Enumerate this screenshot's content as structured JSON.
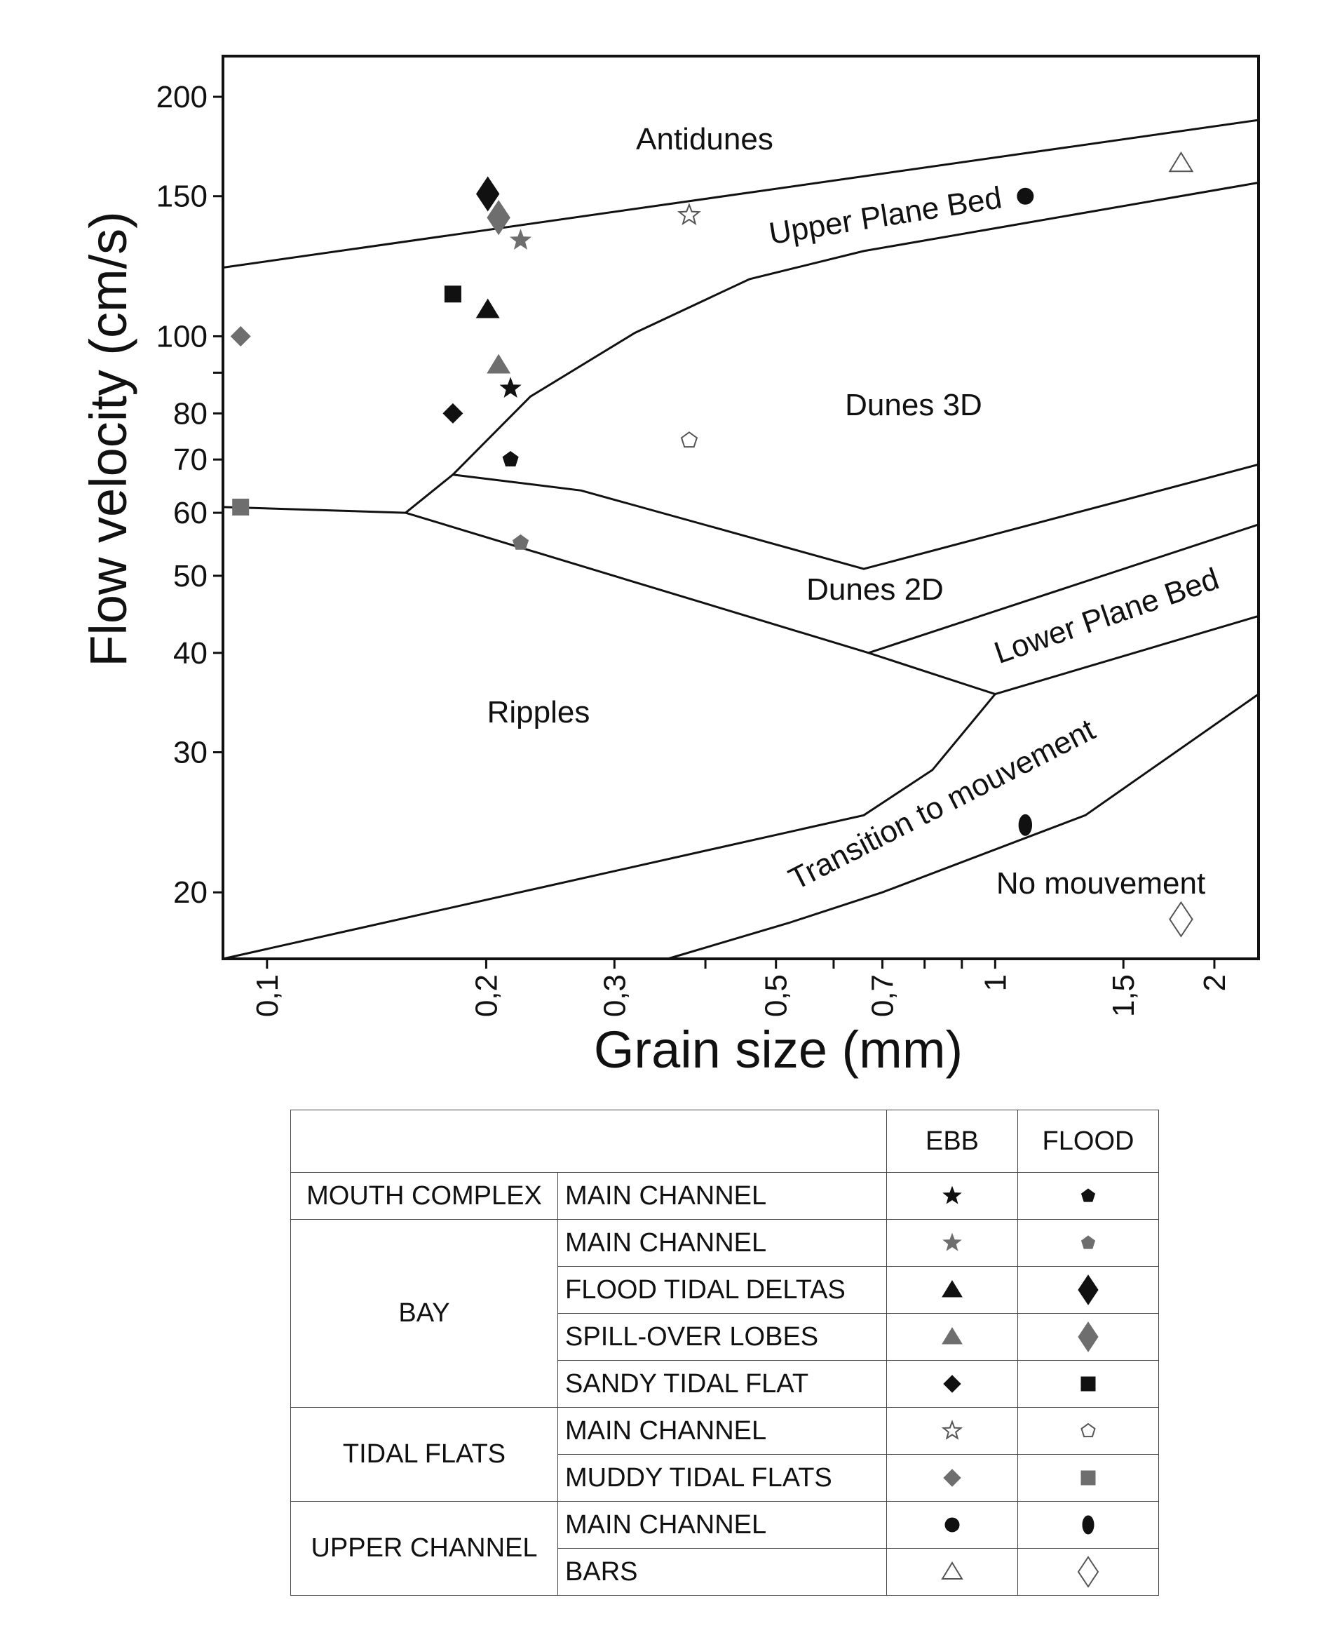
{
  "chart_data": {
    "type": "scatter",
    "xlabel": "Grain size (mm)",
    "ylabel": "Flow velocity (cm/s)",
    "xscale": "log",
    "yscale": "log",
    "xlim": [
      0.087,
      2.3
    ],
    "ylim": [
      16.5,
      225
    ],
    "xticks": [
      {
        "v": 0.1,
        "label": "0,1"
      },
      {
        "v": 0.2,
        "label": "0,2"
      },
      {
        "v": 0.3,
        "label": "0,3"
      },
      {
        "v": 0.4,
        "label": ""
      },
      {
        "v": 0.5,
        "label": "0,5"
      },
      {
        "v": 0.6,
        "label": ""
      },
      {
        "v": 0.7,
        "label": "0,7"
      },
      {
        "v": 0.8,
        "label": ""
      },
      {
        "v": 0.9,
        "label": ""
      },
      {
        "v": 1.0,
        "label": "1"
      },
      {
        "v": 1.5,
        "label": "1,5"
      },
      {
        "v": 2.0,
        "label": "2"
      }
    ],
    "yticks": [
      {
        "v": 20,
        "label": "20"
      },
      {
        "v": 30,
        "label": "30"
      },
      {
        "v": 40,
        "label": "40"
      },
      {
        "v": 50,
        "label": "50"
      },
      {
        "v": 60,
        "label": "60"
      },
      {
        "v": 70,
        "label": "70"
      },
      {
        "v": 80,
        "label": "80"
      },
      {
        "v": 90,
        "label": ""
      },
      {
        "v": 100,
        "label": "100"
      },
      {
        "v": 150,
        "label": "150"
      },
      {
        "v": 200,
        "label": "200"
      }
    ],
    "boundaries": [
      {
        "name": "antidunes-upper-plane-bed",
        "points": [
          [
            0.087,
            122
          ],
          [
            2.3,
            187
          ]
        ]
      },
      {
        "name": "upper-plane-bed-dunes",
        "points": [
          [
            0.155,
            60
          ],
          [
            0.18,
            67
          ],
          [
            0.23,
            84
          ],
          [
            0.32,
            101
          ],
          [
            0.46,
            118
          ],
          [
            0.66,
            128
          ],
          [
            2.3,
            156
          ]
        ]
      },
      {
        "name": "dunes-3d-dunes-2d",
        "points": [
          [
            0.18,
            67
          ],
          [
            0.27,
            64
          ],
          [
            0.66,
            51
          ],
          [
            2.3,
            69
          ]
        ]
      },
      {
        "name": "ripples-dunes",
        "points": [
          [
            0.087,
            61
          ],
          [
            0.155,
            60
          ],
          [
            0.67,
            40
          ],
          [
            1.0,
            35.5
          ]
        ]
      },
      {
        "name": "dunes-2d-lower-plane-bed",
        "points": [
          [
            0.67,
            40
          ],
          [
            2.3,
            58
          ]
        ]
      },
      {
        "name": "lower-plane-bed-ripples",
        "points": [
          [
            1.0,
            35.5
          ],
          [
            2.3,
            44.5
          ]
        ]
      },
      {
        "name": "ripples-transition",
        "points": [
          [
            0.087,
            16.5
          ],
          [
            0.66,
            25
          ],
          [
            0.82,
            28.5
          ],
          [
            1.0,
            35.5
          ]
        ]
      },
      {
        "name": "transition-no-movement",
        "points": [
          [
            0.355,
            16.5
          ],
          [
            0.52,
            18.3
          ],
          [
            0.7,
            20
          ],
          [
            1.33,
            25
          ],
          [
            2.3,
            35.5
          ]
        ]
      }
    ],
    "regions": [
      "Antidunes",
      "Upper Plane Bed",
      "Dunes 3D",
      "Dunes 2D",
      "Lower Plane Bed",
      "Ripples",
      "Transition to mouvement",
      "No mouvement"
    ],
    "series": [
      {
        "name": "Mouth complex – Main channel – Ebb",
        "marker": "star",
        "color": "#111111",
        "filled": true,
        "points": [
          [
            0.216,
            86
          ]
        ]
      },
      {
        "name": "Mouth complex – Main channel – Flood",
        "marker": "pentagon",
        "color": "#111111",
        "filled": true,
        "points": [
          [
            0.216,
            70
          ]
        ]
      },
      {
        "name": "Bay – Main channel – Ebb",
        "marker": "star",
        "color": "#6e6e6e",
        "filled": true,
        "points": [
          [
            0.223,
            132
          ]
        ]
      },
      {
        "name": "Bay – Main channel – Flood",
        "marker": "pentagon",
        "color": "#6e6e6e",
        "filled": true,
        "points": [
          [
            0.223,
            55
          ]
        ]
      },
      {
        "name": "Bay – Flood tidal deltas – Ebb",
        "marker": "triangle",
        "color": "#111111",
        "filled": true,
        "points": [
          [
            0.201,
            108
          ]
        ]
      },
      {
        "name": "Bay – Flood tidal deltas – Flood",
        "marker": "diamond-big",
        "color": "#111111",
        "filled": true,
        "points": [
          [
            0.201,
            151
          ]
        ]
      },
      {
        "name": "Bay – Spill-over lobes – Ebb",
        "marker": "triangle",
        "color": "#6e6e6e",
        "filled": true,
        "points": [
          [
            0.208,
            92
          ]
        ]
      },
      {
        "name": "Bay – Spill-over lobes – Flood",
        "marker": "diamond-big",
        "color": "#6e6e6e",
        "filled": true,
        "points": [
          [
            0.208,
            141
          ]
        ]
      },
      {
        "name": "Bay – Sandy tidal flat – Ebb",
        "marker": "diamond",
        "color": "#111111",
        "filled": true,
        "points": [
          [
            0.18,
            80
          ]
        ]
      },
      {
        "name": "Bay – Sandy tidal flat – Flood",
        "marker": "square",
        "color": "#111111",
        "filled": true,
        "points": [
          [
            0.18,
            113
          ]
        ]
      },
      {
        "name": "Tidal flats – Main channel – Ebb",
        "marker": "star",
        "color": "#555555",
        "filled": false,
        "points": [
          [
            0.38,
            142
          ]
        ]
      },
      {
        "name": "Tidal flats – Main channel – Flood",
        "marker": "pentagon",
        "color": "#555555",
        "filled": false,
        "points": [
          [
            0.38,
            74
          ]
        ]
      },
      {
        "name": "Tidal flats – Muddy tidal flats – Ebb",
        "marker": "diamond",
        "color": "#6e6e6e",
        "filled": true,
        "points": [
          [
            0.092,
            100
          ]
        ]
      },
      {
        "name": "Tidal flats – Muddy tidal flats – Flood",
        "marker": "square",
        "color": "#6e6e6e",
        "filled": true,
        "points": [
          [
            0.092,
            61
          ]
        ]
      },
      {
        "name": "Upper channel – Main channel – Ebb",
        "marker": "circle",
        "color": "#111111",
        "filled": true,
        "points": [
          [
            1.1,
            150
          ]
        ]
      },
      {
        "name": "Upper channel – Main channel – Flood",
        "marker": "ellipse",
        "color": "#111111",
        "filled": true,
        "points": [
          [
            1.1,
            24.3
          ]
        ]
      },
      {
        "name": "Upper channel – Bars – Ebb",
        "marker": "triangle",
        "color": "#555555",
        "filled": false,
        "points": [
          [
            1.8,
            165
          ]
        ]
      },
      {
        "name": "Upper channel – Bars – Flood",
        "marker": "diamond-big",
        "color": "#555555",
        "filled": false,
        "points": [
          [
            1.8,
            18.5
          ]
        ]
      }
    ]
  },
  "legend": {
    "headers": {
      "ebb": "EBB",
      "flood": "FLOOD"
    },
    "rows": [
      {
        "env": "MOUTH COMPLEX",
        "sub": "MAIN CHANNEL",
        "ebb": {
          "marker": "star",
          "color": "#111111",
          "filled": true
        },
        "flood": {
          "marker": "pentagon",
          "color": "#111111",
          "filled": true
        }
      },
      {
        "env": "BAY",
        "sub": "MAIN CHANNEL",
        "ebb": {
          "marker": "star",
          "color": "#6e6e6e",
          "filled": true
        },
        "flood": {
          "marker": "pentagon",
          "color": "#6e6e6e",
          "filled": true
        }
      },
      {
        "env": "",
        "sub": "FLOOD TIDAL DELTAS",
        "ebb": {
          "marker": "triangle",
          "color": "#111111",
          "filled": true
        },
        "flood": {
          "marker": "diamond-big",
          "color": "#111111",
          "filled": true
        }
      },
      {
        "env": "",
        "sub": "SPILL-OVER LOBES",
        "ebb": {
          "marker": "triangle",
          "color": "#6e6e6e",
          "filled": true
        },
        "flood": {
          "marker": "diamond-big",
          "color": "#6e6e6e",
          "filled": true
        }
      },
      {
        "env": "",
        "sub": "SANDY TIDAL FLAT",
        "ebb": {
          "marker": "diamond",
          "color": "#111111",
          "filled": true
        },
        "flood": {
          "marker": "square",
          "color": "#111111",
          "filled": true
        }
      },
      {
        "env": "TIDAL FLATS",
        "sub": "MAIN CHANNEL",
        "ebb": {
          "marker": "star",
          "color": "#555555",
          "filled": false
        },
        "flood": {
          "marker": "pentagon",
          "color": "#555555",
          "filled": false
        }
      },
      {
        "env": "",
        "sub": "MUDDY TIDAL FLATS",
        "ebb": {
          "marker": "diamond",
          "color": "#6e6e6e",
          "filled": true
        },
        "flood": {
          "marker": "square",
          "color": "#6e6e6e",
          "filled": true
        }
      },
      {
        "env": "UPPER CHANNEL",
        "sub": "MAIN CHANNEL",
        "ebb": {
          "marker": "circle",
          "color": "#111111",
          "filled": true
        },
        "flood": {
          "marker": "ellipse",
          "color": "#111111",
          "filled": true
        }
      },
      {
        "env": "",
        "sub": "BARS",
        "ebb": {
          "marker": "triangle",
          "color": "#555555",
          "filled": false
        },
        "flood": {
          "marker": "diamond-big",
          "color": "#555555",
          "filled": false
        }
      }
    ]
  }
}
